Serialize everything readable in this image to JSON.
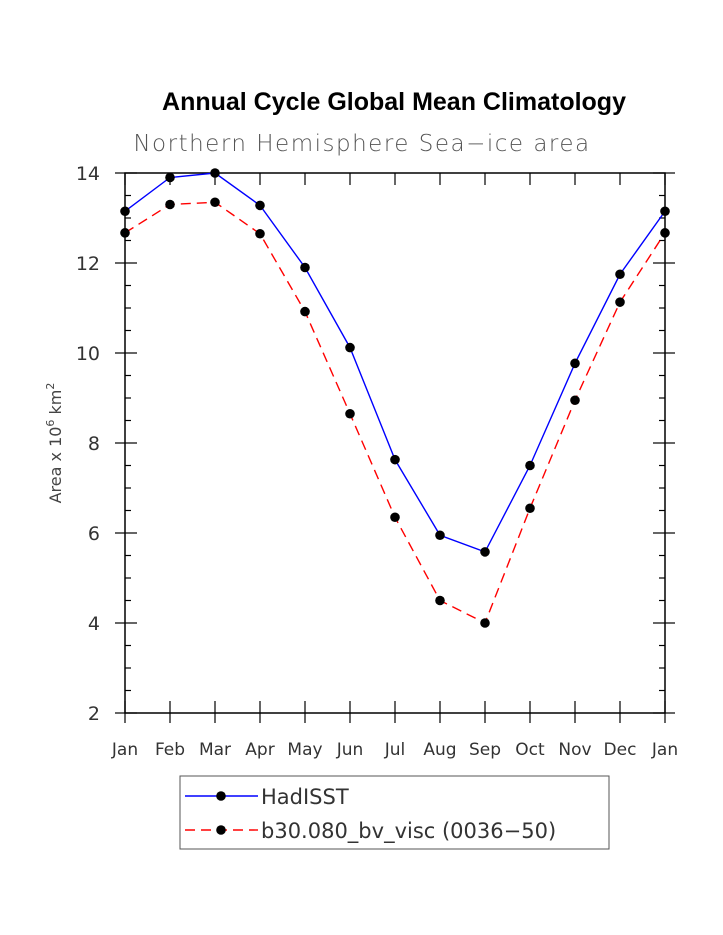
{
  "chart_data": {
    "type": "line",
    "title": "Annual Cycle Global Mean Climatology",
    "subtitle": "Northern Hemisphere Sea−ice area",
    "ylabel_main": "Area x 10",
    "ylabel_exp": "6",
    "ylabel_unit": "km",
    "ylabel_unit_exp": "2",
    "categories": [
      "Jan",
      "Feb",
      "Mar",
      "Apr",
      "May",
      "Jun",
      "Jul",
      "Aug",
      "Sep",
      "Oct",
      "Nov",
      "Dec",
      "Jan"
    ],
    "ylim": [
      2,
      14
    ],
    "yticks": [
      2,
      4,
      6,
      8,
      10,
      12,
      14
    ],
    "grid": false,
    "legend_position": "bottom",
    "series": [
      {
        "name": "HadISST",
        "color": "#0000ff",
        "dashed": false,
        "values": [
          13.15,
          13.9,
          14.0,
          13.28,
          11.9,
          10.12,
          7.63,
          5.95,
          5.58,
          7.5,
          9.77,
          11.75,
          13.15
        ]
      },
      {
        "name": "b30.080_bv_visc (0036−50)",
        "color": "#ff0000",
        "dashed": true,
        "values": [
          12.67,
          13.3,
          13.35,
          12.65,
          10.92,
          8.65,
          6.35,
          4.5,
          4.0,
          6.55,
          8.95,
          11.13,
          12.67
        ]
      }
    ]
  }
}
